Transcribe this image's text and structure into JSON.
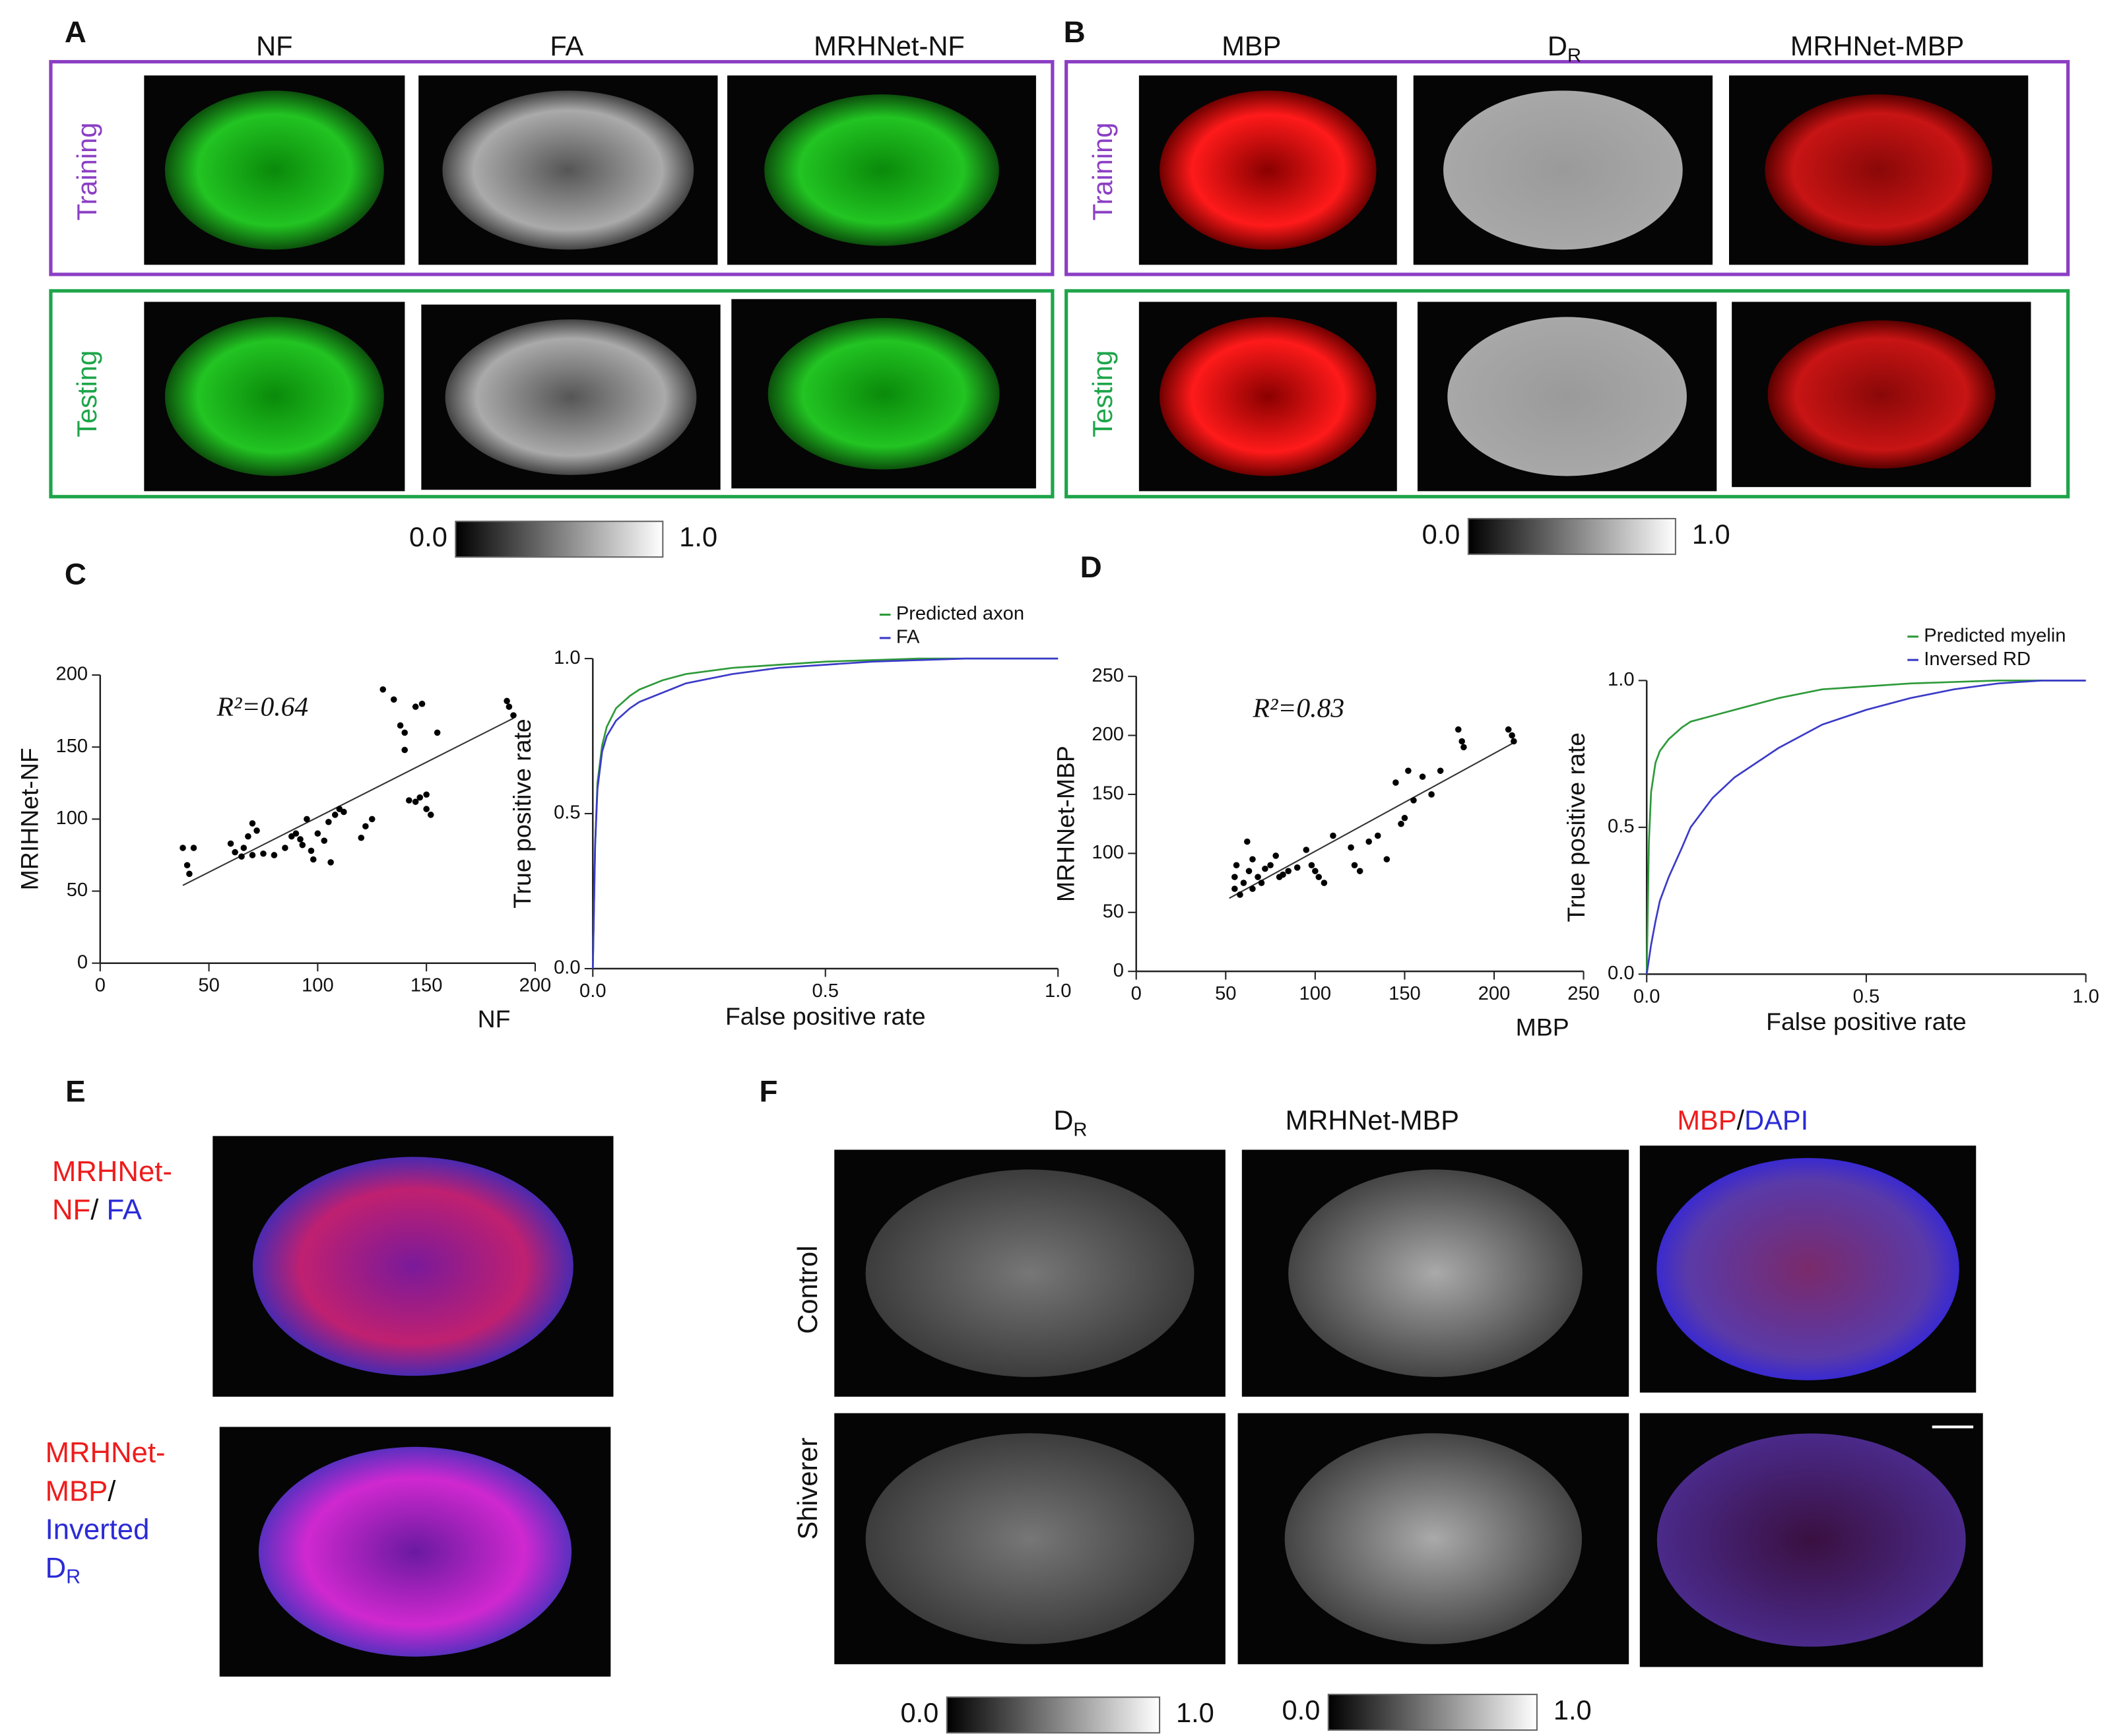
{
  "panels": {
    "A": {
      "letter": "A",
      "columns": [
        "NF",
        "FA",
        "MRHNet-NF"
      ],
      "rows": [
        "Training",
        "Testing"
      ],
      "colorbar": [
        "0.0",
        "1.0"
      ]
    },
    "B": {
      "letter": "B",
      "columns": [
        "MBP",
        {
          "main": "D",
          "sub": "R"
        },
        "MRHNet-MBP"
      ],
      "rows": [
        "Training",
        "Testing"
      ],
      "colorbar": [
        "0.0",
        "1.0"
      ]
    },
    "C": {
      "letter": "C"
    },
    "D": {
      "letter": "D"
    },
    "E": {
      "letter": "E",
      "labels": [
        [
          [
            {
              "text": "MRHNet-",
              "color": "#ee1c1c"
            }
          ],
          [
            {
              "text": "NF",
              "color": "#ee1c1c"
            },
            {
              "text": "/ ",
              "color": "#111111"
            },
            {
              "text": "FA",
              "color": "#2b2bd6"
            }
          ]
        ],
        [
          [
            {
              "text": "MRHNet-",
              "color": "#ee1c1c"
            }
          ],
          [
            {
              "text": "MBP",
              "color": "#ee1c1c"
            },
            {
              "text": "/",
              "color": "#111111"
            }
          ],
          [
            {
              "text": "Inverted",
              "color": "#2b2bd6"
            }
          ],
          [
            {
              "text": "D",
              "color": "#2b2bd6",
              "sub": "R"
            }
          ]
        ]
      ]
    },
    "F": {
      "letter": "F",
      "columns": [
        {
          "main": "D",
          "sub": "R"
        },
        "MRHNet-MBP",
        [
          {
            "text": "MBP",
            "color": "#ee1c1c"
          },
          {
            "text": "/",
            "color": "#111111"
          },
          {
            "text": "DAPI",
            "color": "#2b2bd6"
          }
        ]
      ],
      "rows": [
        "Control",
        "Shiverer"
      ],
      "colorbars": [
        [
          "0.0",
          "1.0"
        ],
        [
          "0.0",
          "1.0"
        ]
      ]
    }
  },
  "chart_data": [
    {
      "type": "scatter",
      "xlabel": "NF",
      "ylabel": "MRIHNet-NF",
      "annotation": "R²=0.64",
      "color": "#000000",
      "x": [
        38,
        40,
        41,
        43,
        60,
        62,
        65,
        66,
        68,
        70,
        70,
        72,
        75,
        80,
        85,
        88,
        90,
        92,
        93,
        95,
        97,
        98,
        100,
        103,
        105,
        106,
        108,
        110,
        112,
        120,
        122,
        125,
        130,
        135,
        138,
        140,
        140,
        142,
        145,
        147,
        150,
        150,
        152,
        155,
        187,
        188,
        190,
        145,
        148
      ],
      "values": [
        80,
        68,
        62,
        80,
        83,
        77,
        74,
        80,
        88,
        97,
        75,
        92,
        76,
        75,
        80,
        88,
        90,
        86,
        82,
        100,
        78,
        72,
        90,
        85,
        98,
        70,
        103,
        107,
        105,
        87,
        95,
        100,
        190,
        183,
        165,
        160,
        148,
        113,
        112,
        115,
        117,
        107,
        103,
        160,
        182,
        178,
        172,
        178,
        180
      ],
      "fit": {
        "x": [
          38,
          190
        ],
        "values": [
          54,
          170
        ]
      },
      "xlim": [
        0,
        200
      ],
      "ylim": [
        0,
        200
      ],
      "xticks": [
        0,
        50,
        100,
        150,
        200
      ],
      "yticks": [
        0,
        50,
        100,
        150,
        200
      ]
    },
    {
      "type": "line",
      "xlabel": "False positive rate",
      "ylabel": "True  positive rate",
      "legend": "top-right",
      "x": [
        0,
        0.005,
        0.01,
        0.02,
        0.03,
        0.05,
        0.08,
        0.1,
        0.15,
        0.2,
        0.3,
        0.4,
        0.5,
        0.6,
        0.7,
        0.8,
        0.9,
        1
      ],
      "series": [
        {
          "name": "Predicted axon",
          "color": "#2e9a3a",
          "values": [
            0,
            0.4,
            0.6,
            0.72,
            0.78,
            0.84,
            0.88,
            0.9,
            0.93,
            0.95,
            0.97,
            0.98,
            0.99,
            0.995,
            1,
            1,
            1,
            1
          ]
        },
        {
          "name": "FA",
          "color": "#3b3bc8",
          "values": [
            0,
            0.4,
            0.58,
            0.7,
            0.75,
            0.8,
            0.84,
            0.86,
            0.89,
            0.92,
            0.95,
            0.97,
            0.98,
            0.99,
            0.995,
            1,
            1,
            1
          ]
        }
      ],
      "xlim": [
        0,
        1
      ],
      "ylim": [
        0,
        1
      ],
      "xticks": [
        {
          "value": 0,
          "label": "0.0"
        },
        0.5,
        {
          "value": 1,
          "label": "1.0"
        }
      ],
      "yticks": [
        {
          "value": 0,
          "label": "0.0"
        },
        0.5,
        {
          "value": 1,
          "label": "1.0"
        }
      ]
    },
    {
      "type": "scatter",
      "xlabel": "MBP",
      "ylabel": "MRHNet-MBP",
      "annotation": "R²=0.83",
      "color": "#000000",
      "x": [
        55,
        55,
        56,
        58,
        60,
        62,
        63,
        65,
        65,
        68,
        70,
        72,
        75,
        78,
        80,
        82,
        85,
        90,
        95,
        98,
        100,
        102,
        105,
        110,
        120,
        122,
        125,
        130,
        135,
        140,
        145,
        148,
        150,
        152,
        155,
        160,
        165,
        170,
        180,
        182,
        183,
        208,
        210,
        211
      ],
      "values": [
        70,
        80,
        90,
        65,
        75,
        110,
        85,
        70,
        95,
        80,
        75,
        87,
        90,
        98,
        80,
        82,
        85,
        88,
        103,
        90,
        85,
        80,
        75,
        115,
        105,
        90,
        85,
        110,
        115,
        95,
        160,
        125,
        130,
        170,
        145,
        165,
        150,
        170,
        205,
        195,
        190,
        205,
        200,
        195
      ],
      "fit": {
        "x": [
          52,
          210
        ],
        "values": [
          62,
          193
        ]
      },
      "xlim": [
        0,
        250
      ],
      "ylim": [
        0,
        250
      ],
      "xticks": [
        0,
        50,
        100,
        150,
        200,
        250
      ],
      "yticks": [
        0,
        50,
        100,
        150,
        200,
        250
      ]
    },
    {
      "type": "line",
      "xlabel": "False positive rate",
      "ylabel": "True  positive rate",
      "legend": "top-right",
      "x": [
        0,
        0.005,
        0.01,
        0.02,
        0.03,
        0.05,
        0.08,
        0.1,
        0.15,
        0.2,
        0.3,
        0.4,
        0.5,
        0.6,
        0.7,
        0.8,
        0.9,
        1
      ],
      "series": [
        {
          "name": "Predicted myelin",
          "color": "#2e9a3a",
          "values": [
            0,
            0.45,
            0.62,
            0.72,
            0.76,
            0.8,
            0.84,
            0.86,
            0.88,
            0.9,
            0.94,
            0.97,
            0.98,
            0.99,
            0.995,
            1,
            1,
            1
          ]
        },
        {
          "name": "Inversed RD",
          "color": "#3b3bc8",
          "values": [
            0,
            0.05,
            0.1,
            0.18,
            0.25,
            0.33,
            0.43,
            0.5,
            0.6,
            0.67,
            0.77,
            0.85,
            0.9,
            0.94,
            0.97,
            0.99,
            1,
            1
          ]
        }
      ],
      "xlim": [
        0,
        1
      ],
      "ylim": [
        0,
        1
      ],
      "xticks": [
        {
          "value": 0,
          "label": "0.0"
        },
        0.5,
        {
          "value": 1,
          "label": "1.0"
        }
      ],
      "yticks": [
        {
          "value": 0,
          "label": "0.0"
        },
        0.5,
        {
          "value": 1,
          "label": "1.0"
        }
      ]
    }
  ]
}
